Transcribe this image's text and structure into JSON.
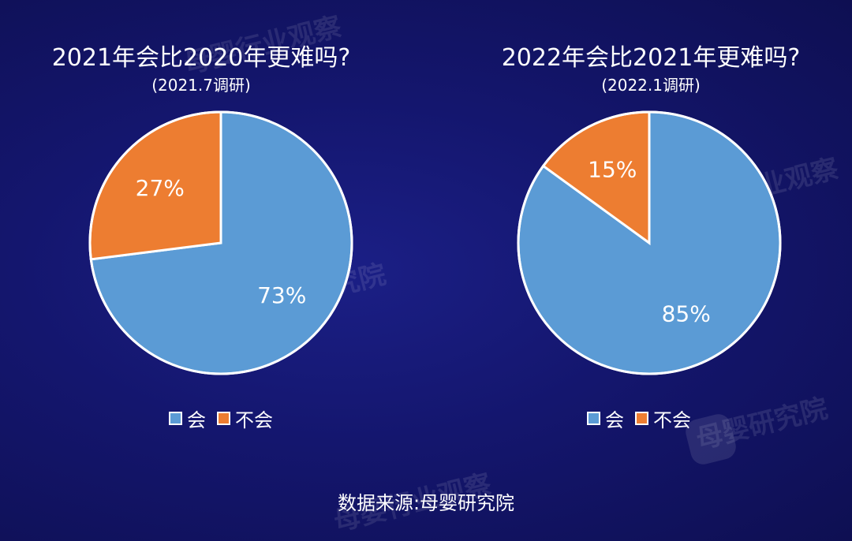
{
  "colors": {
    "hui": "#5b9bd5",
    "buhui": "#ed7d31",
    "outline": "#ffffff"
  },
  "charts": [
    {
      "title": "2021年会比2020年更难吗?",
      "subtitle": "(2021.7调研)",
      "legend": [
        "会",
        "不会"
      ]
    },
    {
      "title": "2022年会比2021年更难吗?",
      "subtitle": "(2022.1调研)",
      "legend": [
        "会",
        "不会"
      ]
    }
  ],
  "chart_data": [
    {
      "type": "pie",
      "title": "2021年会比2020年更难吗?",
      "subtitle": "(2021.7调研)",
      "categories": [
        "会",
        "不会"
      ],
      "values": [
        73,
        27
      ],
      "labels": [
        "73%",
        "27%"
      ],
      "legend_position": "bottom"
    },
    {
      "type": "pie",
      "title": "2022年会比2021年更难吗?",
      "subtitle": "(2022.1调研)",
      "categories": [
        "会",
        "不会"
      ],
      "values": [
        85,
        15
      ],
      "labels": [
        "85%",
        "15%"
      ],
      "legend_position": "bottom"
    }
  ],
  "source": "数据来源:母婴研究院",
  "watermark": {
    "text_a": "母婴行业观察",
    "text_b": "母婴研究院"
  }
}
